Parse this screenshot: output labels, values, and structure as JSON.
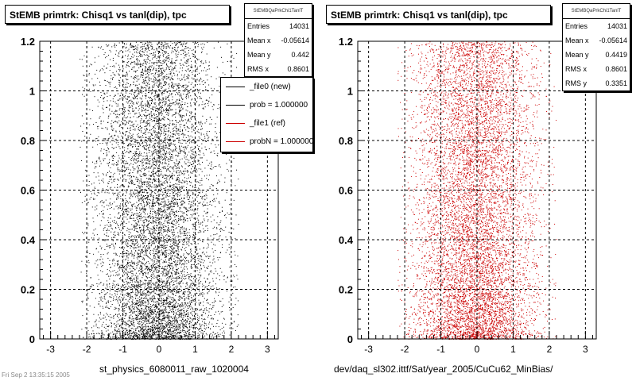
{
  "chart_data": [
    {
      "type": "scatter",
      "title": "StEMB primtrk: Chisq1 vs tanl(dip), tpc",
      "xlabel": "st_physics_6080011_raw_1020004",
      "ylabel": "",
      "xlim": [
        -3.3,
        3.3
      ],
      "ylim": [
        0,
        1.2
      ],
      "xticks": [
        -3,
        -2,
        -1,
        0,
        1,
        2,
        3
      ],
      "yticks": [
        0,
        0.2,
        0.4,
        0.6,
        0.8,
        1,
        1.2
      ],
      "xtick_labels": [
        "-3",
        "-2",
        "-1",
        "0",
        "1",
        "2",
        "3"
      ],
      "ytick_labels": [
        "0",
        "0.2",
        "0.4",
        "0.6",
        "0.8",
        "1",
        "1.2"
      ],
      "grid": true,
      "marker_color": "#000000",
      "stats": {
        "name": "StEMBQaPrkChi1TanlT",
        "rows": [
          {
            "label": "Entries",
            "value": "14031"
          },
          {
            "label": "Mean x",
            "value": "-0.05614"
          },
          {
            "label": "Mean y",
            "value": "0.442"
          },
          {
            "label": "RMS x",
            "value": "0.8601"
          }
        ]
      },
      "legend": {
        "placement": "top-right",
        "entries": [
          {
            "label": "_file0 (new)",
            "color": "#000000"
          },
          {
            "label": "prob = 1.000000",
            "color": "#000000"
          },
          {
            "label": "_file1 (ref)",
            "color": "#cc0000"
          },
          {
            "label": "probN = 1.000000",
            "color": "#cc0000"
          }
        ]
      }
    },
    {
      "type": "scatter",
      "title": "StEMB primtrk: Chisq1 vs tanl(dip), tpc",
      "xlabel": "dev/daq_sl302.ittf/Sat/year_2005/CuCu62_MinBias/",
      "ylabel": "",
      "xlim": [
        -3.3,
        3.3
      ],
      "ylim": [
        0,
        1.2
      ],
      "xticks": [
        -3,
        -2,
        -1,
        0,
        1,
        2,
        3
      ],
      "yticks": [
        0,
        0.2,
        0.4,
        0.6,
        0.8,
        1,
        1.2
      ],
      "xtick_labels": [
        "-3",
        "-2",
        "-1",
        "0",
        "1",
        "2",
        "3"
      ],
      "ytick_labels": [
        "0",
        "0.2",
        "0.4",
        "0.6",
        "0.8",
        "1",
        "1.2"
      ],
      "grid": true,
      "marker_color": "#cc0000",
      "stats": {
        "name": "StEMBQaPrkChi1TanlT",
        "rows": [
          {
            "label": "Entries",
            "value": "14031"
          },
          {
            "label": "Mean x",
            "value": "-0.05614"
          },
          {
            "label": "Mean y",
            "value": "0.4419"
          },
          {
            "label": "RMS x",
            "value": "0.8601"
          },
          {
            "label": "RMS y",
            "value": "0.3351"
          }
        ]
      }
    }
  ],
  "corner_text": "Fri Sep 2 13:35:15 2005"
}
